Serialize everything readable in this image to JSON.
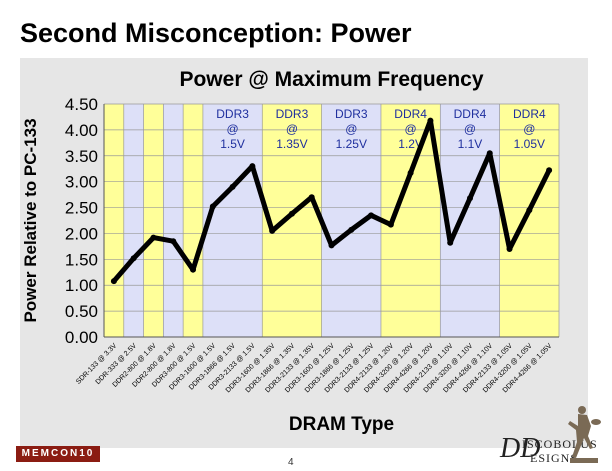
{
  "slide": {
    "title": "Second Misconception: Power",
    "page_number": "4",
    "footer_logo": "MEMCON10",
    "brand_line1": "ISCOBOLUS",
    "brand_line2": "ESIGNS",
    "brand_mark": "DD"
  },
  "colors": {
    "panel_bg": "#e6e6e6",
    "band_yellow": "#ffff99",
    "band_lavender": "#dde0f8",
    "line": "#000000",
    "grid": "#999999",
    "label_blue": "#1f2f9e"
  },
  "chart_data": {
    "type": "line",
    "title": "Power @ Maximum Frequency",
    "xlabel": "DRAM Type",
    "ylabel": "Power Relative to PC-133",
    "ylim": [
      0,
      4.5
    ],
    "yticks": [
      "0.00",
      "0.50",
      "1.00",
      "1.50",
      "2.00",
      "2.50",
      "3.00",
      "3.50",
      "4.00",
      "4.50"
    ],
    "grid": true,
    "categories": [
      "SDR-133 @ 3.3V",
      "DDR-333 @ 2.5V",
      "DDR2-800 @ 1.8V",
      "DDR2-800 @ 1.8V",
      "DDR3-800 @ 1.5V",
      "DDR3-1600 @ 1.5V",
      "DDR3-1866 @ 1.5V",
      "DDR3-2133 @ 1.5V",
      "DDR3-1600 @ 1.35V",
      "DDR3-1866 @ 1.35V",
      "DDR3-2133 @ 1.35V",
      "DDR3-1600 @ 1.25V",
      "DDR3-1866 @ 1.25V",
      "DDR3-2133 @ 1.25V",
      "DDR4-2133 @ 1.20V",
      "DDR4-3200 @ 1.20V",
      "DDR4-4266 @ 1.20V",
      "DDR4-2133 @ 1.10V",
      "DDR4-3200 @ 1.10V",
      "DDR4-4266 @ 1.10V",
      "DDR4-2133 @ 1.05V",
      "DDR4-3200 @ 1.05V",
      "DDR4-4266 @ 1.05V"
    ],
    "values": [
      1.08,
      1.52,
      1.92,
      1.85,
      1.3,
      2.52,
      2.9,
      3.3,
      2.05,
      2.38,
      2.7,
      1.77,
      2.07,
      2.35,
      2.17,
      3.17,
      4.18,
      1.82,
      2.68,
      3.55,
      1.7,
      2.45,
      3.22
    ],
    "bands": [
      {
        "from": 0,
        "to": 1,
        "color": "yellow"
      },
      {
        "from": 1,
        "to": 2,
        "color": "lavender"
      },
      {
        "from": 2,
        "to": 3,
        "color": "yellow"
      },
      {
        "from": 3,
        "to": 4,
        "color": "lavender"
      },
      {
        "from": 4,
        "to": 5,
        "color": "yellow"
      },
      {
        "from": 5,
        "to": 8,
        "color": "lavender"
      },
      {
        "from": 8,
        "to": 11,
        "color": "yellow"
      },
      {
        "from": 11,
        "to": 14,
        "color": "lavender"
      },
      {
        "from": 14,
        "to": 17,
        "color": "yellow"
      },
      {
        "from": 17,
        "to": 20,
        "color": "lavender"
      },
      {
        "from": 20,
        "to": 23,
        "color": "yellow"
      }
    ],
    "group_labels": [
      {
        "start": 5,
        "end": 8,
        "line1": "DDR3",
        "line2": "@",
        "line3": "1.5V"
      },
      {
        "start": 8,
        "end": 11,
        "line1": "DDR3",
        "line2": "@",
        "line3": "1.35V"
      },
      {
        "start": 11,
        "end": 14,
        "line1": "DDR3",
        "line2": "@",
        "line3": "1.25V"
      },
      {
        "start": 14,
        "end": 17,
        "line1": "DDR4",
        "line2": "@",
        "line3": "1.2V"
      },
      {
        "start": 17,
        "end": 20,
        "line1": "DDR4",
        "line2": "@",
        "line3": "1.1V"
      },
      {
        "start": 20,
        "end": 23,
        "line1": "DDR4",
        "line2": "@",
        "line3": "1.05V"
      }
    ]
  }
}
